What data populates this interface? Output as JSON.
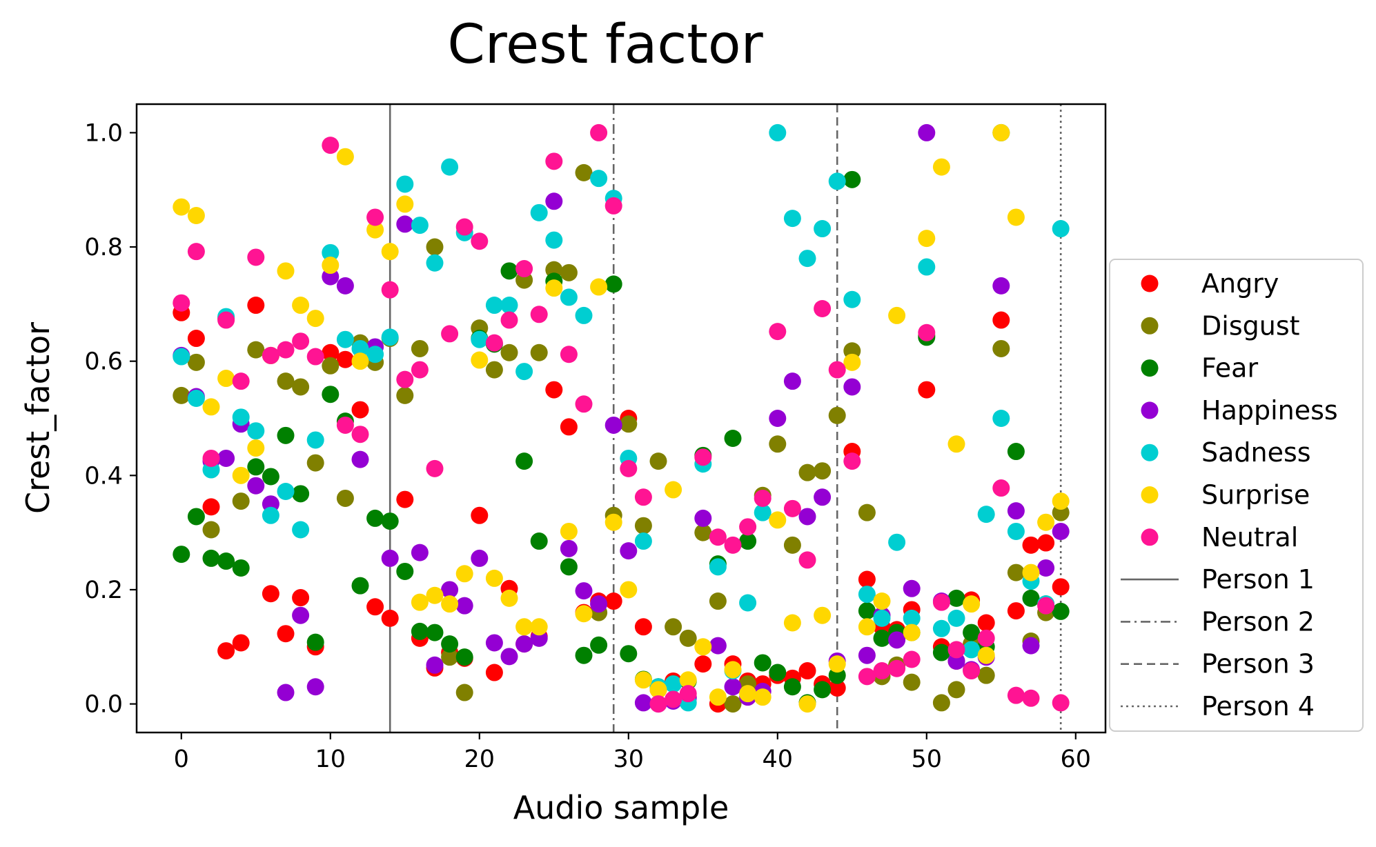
{
  "chart_data": {
    "type": "scatter",
    "title": "Crest factor",
    "xlabel": "Audio sample",
    "ylabel": "Crest_factor",
    "xlim": [
      -3,
      62
    ],
    "ylim": [
      -0.05,
      1.05
    ],
    "xticks": [
      0,
      10,
      20,
      30,
      40,
      50,
      60
    ],
    "yticks": [
      0.0,
      0.2,
      0.4,
      0.6,
      0.8,
      1.0
    ],
    "xtick_labels": [
      "0",
      "10",
      "20",
      "30",
      "40",
      "50",
      "60"
    ],
    "ytick_labels": [
      "0.0",
      "0.2",
      "0.4",
      "0.6",
      "0.8",
      "1.0"
    ],
    "grid": false,
    "legend_position": "outside-right",
    "series": [
      {
        "name": "Angry",
        "color": "#ff0000",
        "x": [
          0,
          1,
          2,
          3,
          4,
          5,
          6,
          7,
          8,
          9,
          10,
          11,
          12,
          13,
          14,
          15,
          16,
          17,
          18,
          19,
          20,
          21,
          22,
          23,
          24,
          25,
          26,
          27,
          28,
          29,
          30,
          31,
          32,
          33,
          34,
          35,
          36,
          37,
          38,
          39,
          40,
          41,
          42,
          43,
          44,
          45,
          46,
          47,
          48,
          49,
          50,
          51,
          52,
          53,
          54,
          55,
          56,
          57,
          58,
          59
        ],
        "y": [
          0.685,
          0.64,
          0.345,
          0.093,
          0.107,
          0.698,
          0.193,
          0.123,
          0.186,
          0.1,
          0.615,
          0.603,
          0.515,
          0.17,
          0.15,
          0.358,
          0.115,
          0.063,
          0.09,
          0.08,
          0.33,
          0.055,
          0.202,
          0.105,
          0.118,
          0.55,
          0.485,
          0.16,
          0.18,
          0.18,
          0.5,
          0.135,
          0.025,
          0.04,
          0.012,
          0.07,
          0.0,
          0.07,
          0.04,
          0.035,
          0.05,
          0.045,
          0.058,
          0.035,
          0.028,
          0.442,
          0.218,
          0.135,
          0.13,
          0.165,
          0.55,
          0.1,
          0.075,
          0.182,
          0.142,
          0.672,
          0.163,
          0.278,
          0.282,
          0.205
        ]
      },
      {
        "name": "Disgust",
        "color": "#808000",
        "x": [
          0,
          1,
          2,
          3,
          4,
          5,
          6,
          7,
          8,
          9,
          10,
          11,
          12,
          13,
          14,
          15,
          16,
          17,
          18,
          19,
          20,
          21,
          22,
          23,
          24,
          25,
          26,
          27,
          28,
          29,
          30,
          31,
          32,
          33,
          34,
          35,
          36,
          37,
          38,
          39,
          40,
          41,
          42,
          43,
          44,
          45,
          46,
          47,
          48,
          49,
          50,
          51,
          52,
          53,
          54,
          55,
          56,
          57,
          58,
          59
        ],
        "y": [
          0.54,
          0.598,
          0.305,
          0.675,
          0.355,
          0.62,
          0.61,
          0.565,
          0.555,
          0.422,
          0.592,
          0.36,
          0.632,
          0.598,
          0.64,
          0.54,
          0.622,
          0.8,
          0.082,
          0.02,
          0.658,
          0.585,
          0.615,
          0.742,
          0.615,
          0.76,
          0.755,
          0.93,
          0.16,
          0.33,
          0.49,
          0.312,
          0.425,
          0.135,
          0.115,
          0.3,
          0.18,
          0.0,
          0.035,
          0.365,
          0.455,
          0.278,
          0.405,
          0.408,
          0.505,
          0.618,
          0.335,
          0.048,
          0.068,
          0.038,
          0.645,
          0.002,
          0.025,
          0.105,
          0.05,
          0.622,
          0.23,
          0.11,
          0.16,
          0.335
        ]
      },
      {
        "name": "Fear",
        "color": "#008000",
        "x": [
          0,
          1,
          2,
          3,
          4,
          5,
          6,
          7,
          8,
          9,
          10,
          11,
          12,
          13,
          14,
          15,
          16,
          17,
          18,
          19,
          20,
          21,
          22,
          23,
          24,
          25,
          26,
          27,
          28,
          29,
          30,
          31,
          32,
          33,
          34,
          35,
          36,
          37,
          38,
          39,
          40,
          41,
          42,
          43,
          44,
          45,
          46,
          47,
          48,
          49,
          50,
          51,
          52,
          53,
          54,
          55,
          56,
          57,
          58,
          59
        ],
        "y": [
          0.262,
          0.328,
          0.255,
          0.25,
          0.238,
          0.415,
          0.398,
          0.47,
          0.368,
          0.108,
          0.542,
          0.495,
          0.207,
          0.325,
          0.32,
          0.232,
          0.127,
          0.125,
          0.105,
          0.082,
          0.64,
          0.63,
          0.758,
          0.425,
          0.285,
          0.74,
          0.24,
          0.085,
          0.103,
          0.735,
          0.088,
          0.043,
          0.03,
          0.035,
          0.04,
          0.435,
          0.245,
          0.465,
          0.285,
          0.072,
          0.055,
          0.03,
          0.002,
          0.025,
          0.05,
          0.918,
          0.163,
          0.115,
          0.125,
          0.125,
          0.642,
          0.09,
          0.185,
          0.125,
          0.1,
          1.0,
          0.442,
          0.185,
          0.175,
          0.162
        ]
      },
      {
        "name": "Happiness",
        "color": "#9400d3",
        "x": [
          0,
          1,
          2,
          3,
          4,
          5,
          6,
          7,
          8,
          9,
          10,
          11,
          12,
          13,
          14,
          15,
          16,
          17,
          18,
          19,
          20,
          21,
          22,
          23,
          24,
          25,
          26,
          27,
          28,
          29,
          30,
          31,
          32,
          33,
          34,
          35,
          36,
          37,
          38,
          39,
          40,
          41,
          42,
          43,
          44,
          45,
          46,
          47,
          48,
          49,
          50,
          51,
          52,
          53,
          54,
          55,
          56,
          57,
          58,
          59
        ],
        "y": [
          0.61,
          0.538,
          0.425,
          0.43,
          0.49,
          0.382,
          0.35,
          0.02,
          0.155,
          0.03,
          0.748,
          0.732,
          0.428,
          0.625,
          0.255,
          0.84,
          0.265,
          0.068,
          0.2,
          0.172,
          0.255,
          0.107,
          0.083,
          0.105,
          0.115,
          0.88,
          0.272,
          0.198,
          0.175,
          0.488,
          0.268,
          0.002,
          0.0,
          0.005,
          0.01,
          0.325,
          0.102,
          0.03,
          0.012,
          0.022,
          0.5,
          0.565,
          0.328,
          0.362,
          0.075,
          0.555,
          0.085,
          0.155,
          0.112,
          0.202,
          1.0,
          0.18,
          0.075,
          0.06,
          0.082,
          0.732,
          0.338,
          0.102,
          0.238,
          0.302
        ]
      },
      {
        "name": "Sadness",
        "color": "#00ced1",
        "x": [
          0,
          1,
          2,
          3,
          4,
          5,
          6,
          7,
          8,
          9,
          10,
          11,
          12,
          13,
          14,
          15,
          16,
          17,
          18,
          19,
          20,
          21,
          22,
          23,
          24,
          25,
          26,
          27,
          28,
          29,
          30,
          31,
          32,
          33,
          34,
          35,
          36,
          37,
          38,
          39,
          40,
          41,
          42,
          43,
          44,
          45,
          46,
          47,
          48,
          49,
          50,
          51,
          52,
          53,
          54,
          55,
          56,
          57,
          58,
          59
        ],
        "y": [
          0.608,
          0.535,
          0.41,
          0.678,
          0.502,
          0.478,
          0.33,
          0.372,
          0.305,
          0.462,
          0.79,
          0.638,
          0.622,
          0.612,
          0.642,
          0.91,
          0.838,
          0.772,
          0.94,
          0.825,
          0.638,
          0.698,
          0.698,
          0.582,
          0.86,
          0.812,
          0.712,
          0.68,
          0.92,
          0.885,
          0.43,
          0.285,
          0.03,
          0.035,
          0.002,
          0.42,
          0.24,
          0.058,
          0.177,
          0.335,
          1.0,
          0.85,
          0.78,
          0.832,
          0.915,
          0.708,
          0.192,
          0.15,
          0.283,
          0.15,
          0.765,
          0.132,
          0.15,
          0.095,
          0.332,
          0.5,
          0.302,
          0.215,
          0.175,
          0.832
        ]
      },
      {
        "name": "Surprise",
        "color": "#ffd700",
        "x": [
          0,
          1,
          2,
          3,
          4,
          5,
          6,
          7,
          8,
          9,
          10,
          11,
          12,
          13,
          14,
          15,
          16,
          17,
          18,
          19,
          20,
          21,
          22,
          23,
          24,
          25,
          26,
          27,
          28,
          29,
          30,
          31,
          32,
          33,
          34,
          35,
          36,
          37,
          38,
          39,
          40,
          41,
          42,
          43,
          44,
          45,
          46,
          47,
          48,
          49,
          50,
          51,
          52,
          53,
          54,
          55,
          56,
          57,
          58,
          59
        ],
        "y": [
          0.87,
          0.855,
          0.52,
          0.57,
          0.4,
          0.448,
          0.61,
          0.758,
          0.698,
          0.675,
          0.768,
          0.958,
          0.6,
          0.83,
          0.792,
          0.875,
          0.178,
          0.19,
          0.175,
          0.228,
          0.602,
          0.22,
          0.185,
          0.135,
          0.135,
          0.728,
          0.302,
          0.158,
          0.73,
          0.318,
          0.2,
          0.042,
          0.025,
          0.375,
          0.042,
          0.1,
          0.012,
          0.06,
          0.018,
          0.012,
          0.322,
          0.142,
          0.0,
          0.155,
          0.07,
          0.598,
          0.135,
          0.18,
          0.68,
          0.125,
          0.815,
          0.94,
          0.455,
          0.175,
          0.085,
          1.0,
          0.852,
          0.23,
          0.318,
          0.355
        ]
      },
      {
        "name": "Neutral",
        "color": "#ff1493",
        "x": [
          0,
          1,
          2,
          3,
          4,
          5,
          6,
          7,
          8,
          9,
          10,
          11,
          12,
          13,
          14,
          15,
          16,
          17,
          18,
          19,
          20,
          21,
          22,
          23,
          24,
          25,
          26,
          27,
          28,
          29,
          30,
          31,
          32,
          33,
          34,
          35,
          36,
          37,
          38,
          39,
          40,
          41,
          42,
          43,
          44,
          45,
          46,
          47,
          48,
          49,
          50,
          51,
          52,
          53,
          54,
          55,
          56,
          57,
          58,
          59
        ],
        "y": [
          0.702,
          0.792,
          0.43,
          0.672,
          0.565,
          0.782,
          0.61,
          0.62,
          0.635,
          0.608,
          0.978,
          0.488,
          0.472,
          0.852,
          0.725,
          0.568,
          0.585,
          0.412,
          0.648,
          0.835,
          0.81,
          0.632,
          0.672,
          0.762,
          0.682,
          0.95,
          0.612,
          0.525,
          1.0,
          0.872,
          0.412,
          0.362,
          0.0,
          0.008,
          0.018,
          0.432,
          0.292,
          0.278,
          0.31,
          0.36,
          0.652,
          0.342,
          0.252,
          0.692,
          0.585,
          0.425,
          0.048,
          0.058,
          0.062,
          0.078,
          0.65,
          0.178,
          0.095,
          0.058,
          0.115,
          0.378,
          0.015,
          0.01,
          0.172,
          0.002
        ]
      }
    ],
    "vlines": [
      {
        "name": "Person 1",
        "x": 14,
        "style": "solid",
        "color": "#666666"
      },
      {
        "name": "Person 2",
        "x": 29,
        "style": "dashdot",
        "color": "#666666"
      },
      {
        "name": "Person 3",
        "x": 44,
        "style": "dashed",
        "color": "#666666"
      },
      {
        "name": "Person 4",
        "x": 59,
        "style": "dotted",
        "color": "#666666"
      }
    ]
  }
}
